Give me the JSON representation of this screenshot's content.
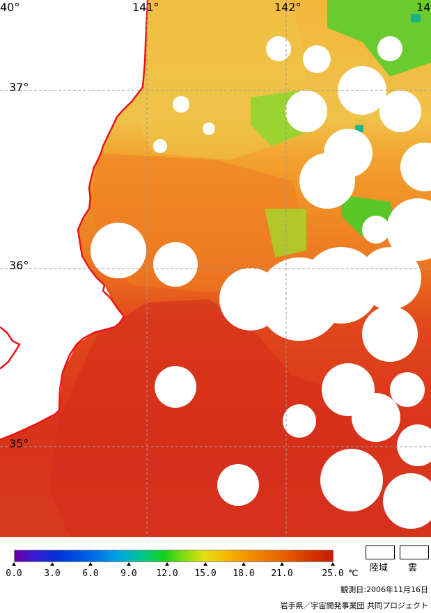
{
  "map": {
    "lon_labels": [
      "40°",
      "141°",
      "142°",
      "14"
    ],
    "lat_labels": [
      "37°",
      "36°",
      "35°"
    ],
    "colors": {
      "land": "#ffffff",
      "cloud": "#ffffff",
      "coastline": "#e8141a",
      "grid": "#9a9a9a",
      "sst_cold_north": "#d8d64a",
      "sst_mid": "#f1a22a",
      "sst_warm": "#e9721d",
      "sst_hot_south": "#d8361b",
      "green_patches": "#7fd42a"
    }
  },
  "legend": {
    "tick_labels": [
      "0.0",
      "3.0",
      "6.0",
      "9.0",
      "12.0",
      "15.0",
      "18.0",
      "21.0",
      "25.0"
    ],
    "unit": "℃",
    "land_label": "陸域",
    "cloud_label": "雲",
    "observation_date": "観測日:2006年11月16日",
    "credit": "岩手県／宇宙開発事業団 共同プロジェクト"
  },
  "chart_data": {
    "type": "heatmap",
    "colorbar_range": [
      0.0,
      25.0
    ],
    "colorbar_ticks": [
      0.0,
      3.0,
      6.0,
      9.0,
      12.0,
      15.0,
      18.0,
      21.0,
      25.0
    ],
    "unit": "℃"
  }
}
